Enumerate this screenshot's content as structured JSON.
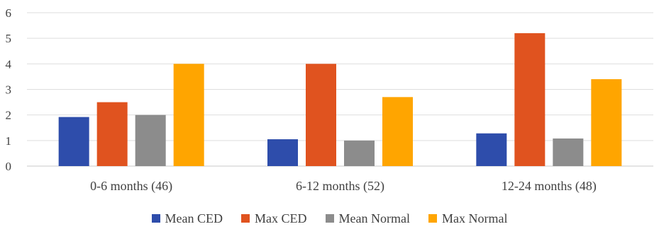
{
  "chart_data": {
    "type": "bar",
    "title": "",
    "xlabel": "",
    "ylabel": "",
    "categories": [
      "0-6 months (46)",
      "6-12 months (52)",
      "12-24 months (48)"
    ],
    "series": [
      {
        "name": "Mean CED",
        "color": "#2e4dab",
        "values": [
          1.92,
          1.05,
          1.28
        ]
      },
      {
        "name": "Max CED",
        "color": "#e0531f",
        "values": [
          2.5,
          4.0,
          5.2
        ]
      },
      {
        "name": "Mean Normal",
        "color": "#8c8c8c",
        "values": [
          2.0,
          1.0,
          1.08
        ]
      },
      {
        "name": "Max Normal",
        "color": "#ffa500",
        "values": [
          4.0,
          2.7,
          3.4
        ]
      }
    ],
    "yticks": [
      "0",
      "1",
      "2",
      "3",
      "4",
      "5",
      "6"
    ],
    "ylim": [
      0,
      6
    ],
    "grid": true,
    "legend_position": "bottom"
  }
}
